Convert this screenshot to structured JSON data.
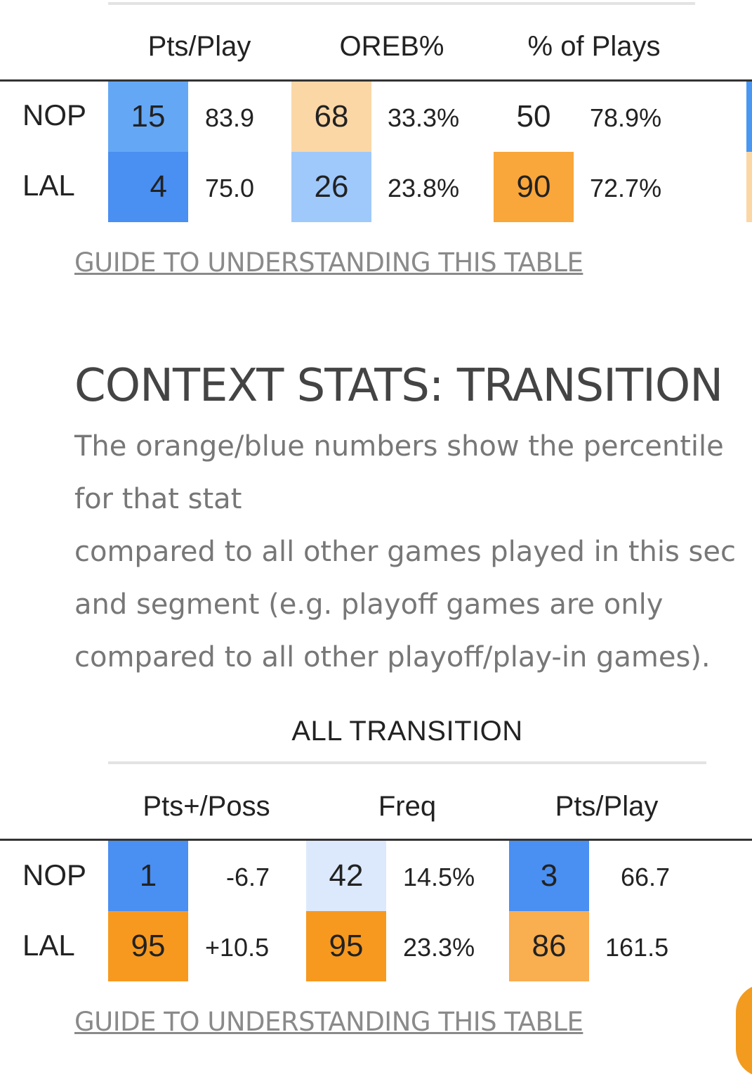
{
  "top_table": {
    "columns": [
      "Pts/Play",
      "OREB%",
      "% of Plays"
    ],
    "rows": [
      {
        "team": "NOP",
        "cells": [
          {
            "pct": "15",
            "value": "83.9",
            "color": "#64a8f5"
          },
          {
            "pct": "68",
            "value": "33.3%",
            "color": "#fbd7a6"
          },
          {
            "pct": "50",
            "value": "78.9%",
            "color": "#ffffff"
          }
        ],
        "edge_color": "#4a97f2"
      },
      {
        "team": "LAL",
        "cells": [
          {
            "pct": "4",
            "value": "75.0",
            "color": "#4a8ff2"
          },
          {
            "pct": "26",
            "value": "23.8%",
            "color": "#9fc9fb"
          },
          {
            "pct": "90",
            "value": "72.7%",
            "color": "#f9a63a"
          }
        ],
        "edge_color": "#fbd7a6"
      }
    ],
    "guide_link": "GUIDE TO UNDERSTANDING THIS TABLE"
  },
  "transition_section": {
    "title": "CONTEXT STATS: TRANSITION",
    "description_lines": [
      "The orange/blue numbers show the percentile",
      "for that stat",
      "compared to all other games played in this sec",
      "and segment (e.g. playoff games are only",
      "compared to all other playoff/play-in games)."
    ],
    "group_title": "ALL TRANSITION",
    "columns": [
      "Pts+/Poss",
      "Freq",
      "Pts/Play"
    ],
    "rows": [
      {
        "team": "NOP",
        "cells": [
          {
            "pct": "1",
            "value": "-6.7",
            "color": "#4a8ff2"
          },
          {
            "pct": "42",
            "value": "14.5%",
            "color": "#dce9fc"
          },
          {
            "pct": "3",
            "value": "66.7",
            "color": "#4a8ff2"
          }
        ]
      },
      {
        "team": "LAL",
        "cells": [
          {
            "pct": "95",
            "value": "+10.5",
            "color": "#f7991f"
          },
          {
            "pct": "95",
            "value": "23.3%",
            "color": "#f7991f"
          },
          {
            "pct": "86",
            "value": "161.5",
            "color": "#f9ae4f"
          }
        ]
      }
    ],
    "guide_link": "GUIDE TO UNDERSTANDING THIS TABLE"
  },
  "floating_button": {
    "color": "#f29b1f"
  }
}
